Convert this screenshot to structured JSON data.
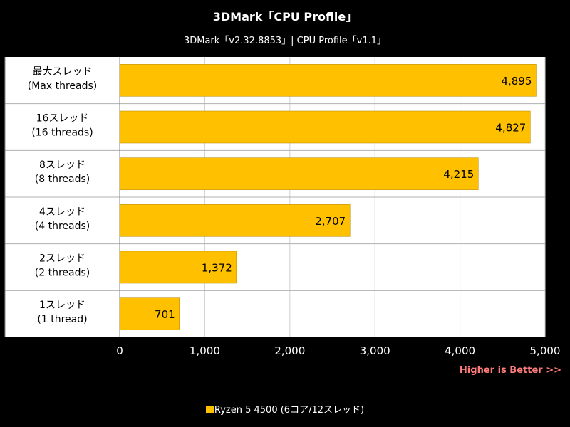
{
  "chart_data": {
    "type": "bar",
    "orientation": "horizontal",
    "title": "3DMark「CPU Profile」",
    "subtitle": "3DMark「v2.32.8853」| CPU Profile「v1.1」",
    "categories": [
      [
        "最大スレッド",
        "(Max threads)"
      ],
      [
        "16スレッド",
        "(16 threads)"
      ],
      [
        "8スレッド",
        "(8 threads)"
      ],
      [
        "4スレッド",
        "(4 threads)"
      ],
      [
        "2スレッド",
        "(2 threads)"
      ],
      [
        "1スレッド",
        "(1 thread)"
      ]
    ],
    "series": [
      {
        "name": "Ryzen 5 4500 (6コア/12スレッド)",
        "color": "#ffc000",
        "values": [
          4895,
          4827,
          4215,
          2707,
          1372,
          701
        ],
        "labels": [
          "4,895",
          "4,827",
          "4,215",
          "2,707",
          "1,372",
          "701"
        ]
      }
    ],
    "xlim": [
      0,
      5000
    ],
    "xticks": [
      0,
      1000,
      2000,
      3000,
      4000,
      5000
    ],
    "xtick_labels": [
      "0",
      "1,000",
      "2,000",
      "3,000",
      "4,000",
      "5,000"
    ],
    "grid": true,
    "legend": "bottom",
    "note": "Higher is Better >>",
    "colors": {
      "background": "#000000",
      "plot_background": "#ffffff",
      "bar": "#ffc000",
      "grid": "#cfcfcf",
      "note": "#ff7a7a"
    }
  }
}
